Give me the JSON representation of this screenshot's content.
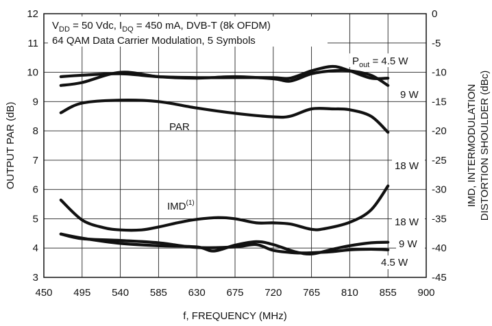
{
  "chart_data": {
    "type": "line",
    "xlabel": "f, FREQUENCY (MHz)",
    "ylabel": "OUTPUT PAR (dB)",
    "y2label_line1": "IMD, INTERMODULATION",
    "y2label_line2": "DISTORTION SHOULDER (dBc)",
    "xlim": [
      450,
      900
    ],
    "ylim": [
      3,
      12
    ],
    "y2lim": [
      -45,
      0
    ],
    "grid": true,
    "x_ticks": [
      "450",
      "495",
      "540",
      "585",
      "630",
      "675",
      "720",
      "765",
      "810",
      "855",
      "900"
    ],
    "y_ticks": [
      "3",
      "4",
      "5",
      "6",
      "7",
      "8",
      "9",
      "10",
      "11",
      "12"
    ],
    "y2_ticks": [
      "-45",
      "-40",
      "-35",
      "-30",
      "-25",
      "-20",
      "-15",
      "-10",
      "-5",
      "0"
    ],
    "conditions_line1": {
      "v": "V",
      "v_sub": "DD",
      "v_rest": " = 50 Vdc, I",
      "i_sub": "DQ",
      "i_rest": " = 450 mA, DVB-T (8k OFDM)"
    },
    "conditions_line2": "64 QAM Data Carrier Modulation, 5 Symbols",
    "pout_label": {
      "p": "P",
      "sub": "out",
      "rest": " = 4.5 W"
    },
    "par_label": "PAR",
    "imd_label": {
      "text": "IMD",
      "sup": "(1)"
    },
    "annotations": [
      "9 W",
      "18 W",
      "18 W",
      "9 W",
      "4.5 W"
    ],
    "series": [
      {
        "group": "PAR",
        "power": "4.5 W",
        "axis": "left",
        "x": [
          470,
          495,
          540,
          585,
          630,
          675,
          720,
          740,
          765,
          790,
          810,
          835,
          855
        ],
        "y": [
          9.85,
          9.9,
          9.95,
          9.85,
          9.82,
          9.82,
          9.82,
          9.8,
          10.05,
          10.2,
          10.05,
          9.8,
          9.8
        ]
      },
      {
        "group": "PAR",
        "power": "9 W",
        "axis": "left",
        "x": [
          470,
          495,
          540,
          585,
          630,
          675,
          720,
          740,
          765,
          790,
          810,
          835,
          855
        ],
        "y": [
          9.55,
          9.65,
          10.0,
          9.85,
          9.8,
          9.85,
          9.78,
          9.7,
          9.95,
          10.05,
          10.05,
          9.9,
          9.55
        ]
      },
      {
        "group": "PAR",
        "power": "18 W",
        "axis": "left",
        "x": [
          470,
          495,
          540,
          585,
          630,
          675,
          720,
          740,
          765,
          790,
          810,
          835,
          855
        ],
        "y": [
          8.62,
          8.95,
          9.05,
          9.0,
          8.78,
          8.6,
          8.48,
          8.5,
          8.75,
          8.75,
          8.72,
          8.5,
          7.95
        ]
      },
      {
        "group": "IMD",
        "power": "18 W",
        "axis": "right",
        "x": [
          470,
          495,
          520,
          540,
          565,
          585,
          610,
          630,
          655,
          675,
          700,
          720,
          740,
          765,
          780,
          810,
          835,
          855
        ],
        "y": [
          -31.8,
          -35.2,
          -36.5,
          -36.9,
          -36.9,
          -36.4,
          -35.6,
          -35.1,
          -34.8,
          -35.0,
          -35.7,
          -35.7,
          -35.9,
          -36.8,
          -36.7,
          -35.6,
          -33.5,
          -29.4
        ]
      },
      {
        "group": "IMD",
        "power": "9 W",
        "axis": "right",
        "x": [
          470,
          495,
          540,
          585,
          630,
          650,
          675,
          700,
          720,
          745,
          765,
          790,
          810,
          835,
          855
        ],
        "y": [
          -37.6,
          -38.3,
          -39.2,
          -39.6,
          -39.8,
          -40.5,
          -39.5,
          -38.9,
          -39.4,
          -40.6,
          -41.0,
          -40.2,
          -39.6,
          -39.1,
          -39.0
        ]
      },
      {
        "group": "IMD",
        "power": "4.5 W",
        "axis": "right",
        "x": [
          470,
          495,
          540,
          585,
          630,
          675,
          700,
          720,
          745,
          765,
          790,
          810,
          835,
          855
        ],
        "y": [
          -37.6,
          -38.4,
          -38.7,
          -39.1,
          -39.9,
          -39.8,
          -39.4,
          -40.4,
          -40.8,
          -40.8,
          -40.6,
          -40.3,
          -40.2,
          -40.3
        ]
      }
    ]
  }
}
